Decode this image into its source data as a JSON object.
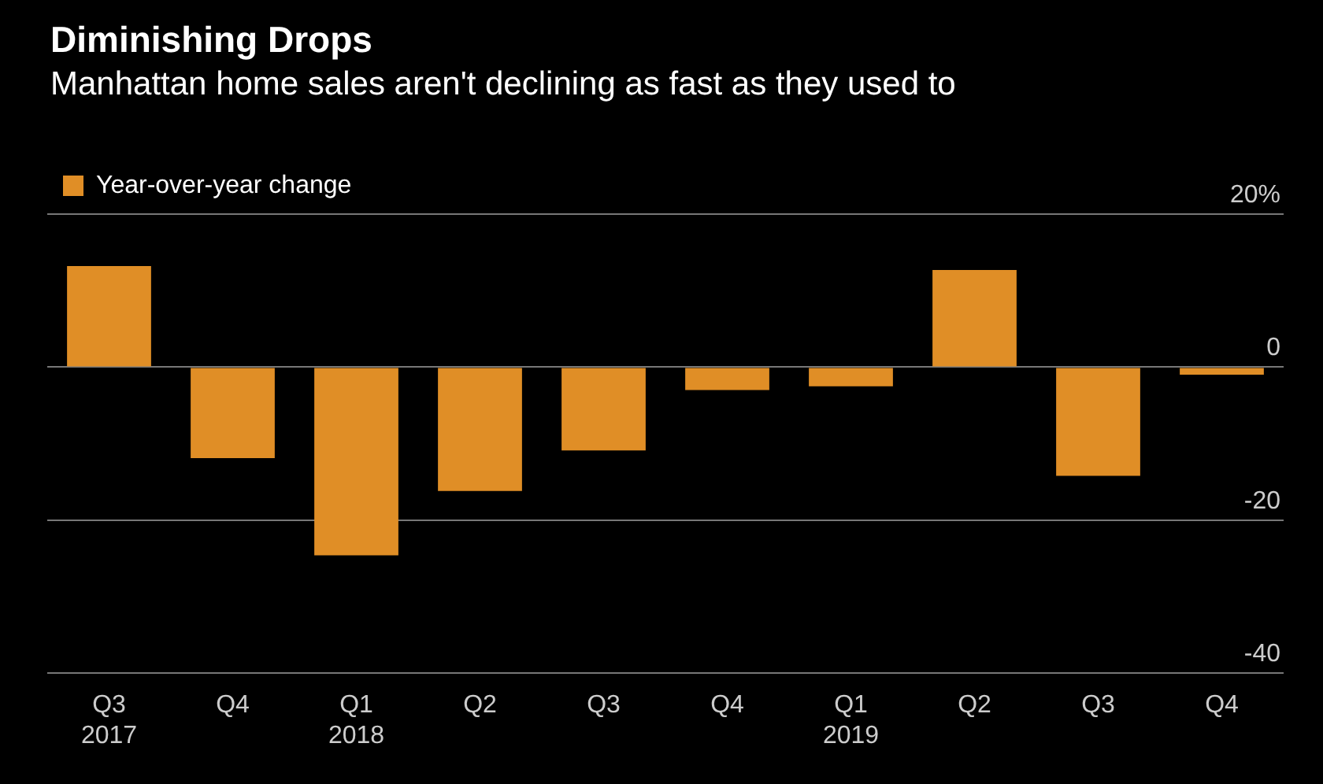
{
  "chart_data": {
    "type": "bar",
    "title": "Diminishing Drops",
    "subtitle": "Manhattan home sales aren't declining as fast as they used to",
    "categories": [
      "Q3\n2017",
      "Q4",
      "Q1\n2018",
      "Q2",
      "Q3",
      "Q4",
      "Q1\n2019",
      "Q2",
      "Q3",
      "Q4"
    ],
    "series": [
      {
        "name": "Year-over-year change",
        "color": "#e08e26",
        "values": [
          13.2,
          -11.9,
          -24.6,
          -16.2,
          -10.9,
          -3.0,
          -2.5,
          12.7,
          -14.2,
          -1.0
        ]
      }
    ],
    "ylim": [
      -40,
      20
    ],
    "yticks": [
      {
        "value": 20,
        "label": "20%"
      },
      0,
      -20,
      -40
    ],
    "grid": "y",
    "legend": "top left"
  }
}
